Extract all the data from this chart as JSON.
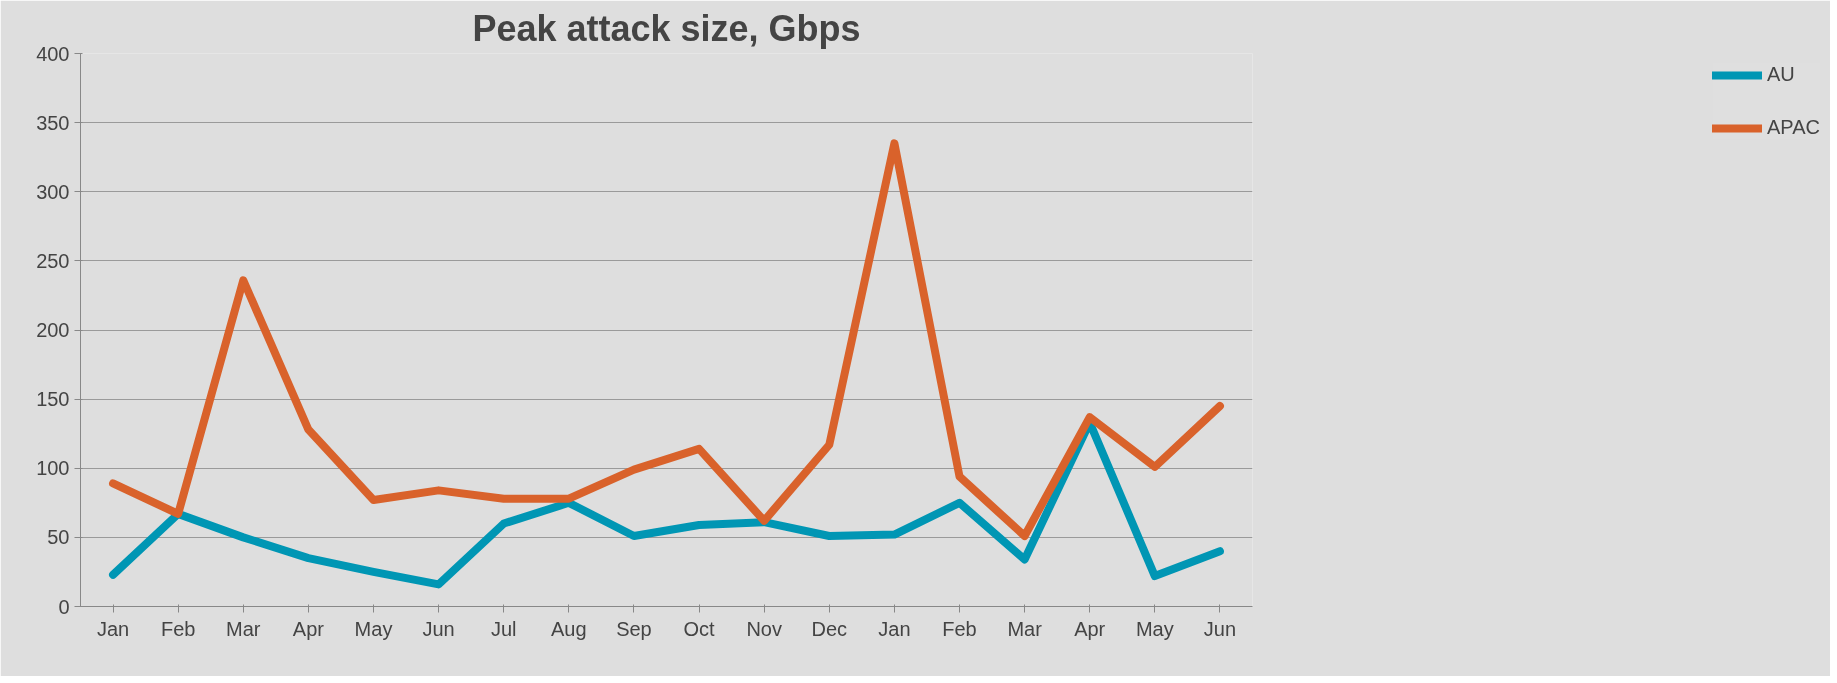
{
  "chart_data": {
    "type": "line",
    "title": "Peak attack size, Gbps",
    "categories": [
      "Jan",
      "Feb",
      "Mar",
      "Apr",
      "May",
      "Jun",
      "Jul",
      "Aug",
      "Sep",
      "Oct",
      "Nov",
      "Dec",
      "Jan",
      "Feb",
      "Mar",
      "Apr",
      "May",
      "Jun"
    ],
    "series": [
      {
        "name": "AU",
        "color": "#0096b4",
        "values": [
          23,
          67,
          50,
          35,
          25,
          16,
          60,
          75,
          51,
          59,
          61,
          51,
          52,
          75,
          34,
          133,
          22,
          40
        ]
      },
      {
        "name": "APAC",
        "color": "#d9622b",
        "values": [
          89,
          67,
          236,
          128,
          77,
          84,
          78,
          78,
          99,
          114,
          62,
          117,
          335,
          94,
          51,
          137,
          101,
          145
        ]
      }
    ],
    "ylim": [
      0,
      400
    ],
    "yticks": [
      0,
      50,
      100,
      150,
      200,
      250,
      300,
      350,
      400
    ],
    "grid": "y",
    "legend": "right",
    "marker": "none",
    "line_style": "solid"
  }
}
